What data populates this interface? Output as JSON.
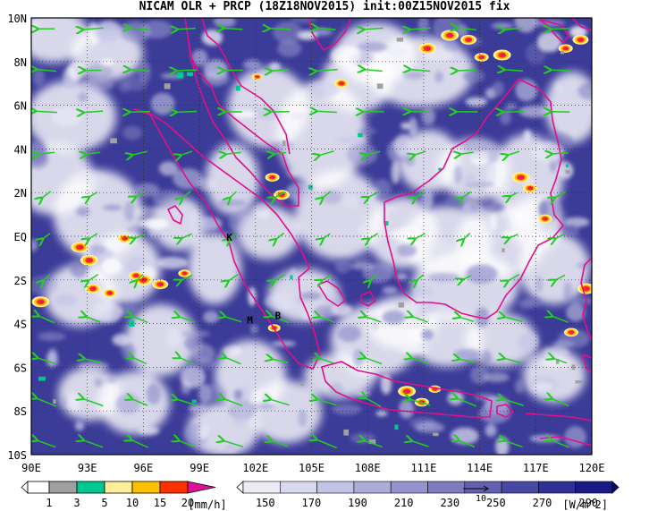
{
  "title": "NICAM OLR + PRCP (18Z18NOV2015) init:00Z15NOV2015 fix",
  "lat_labels": [
    "10N",
    "8N",
    "6N",
    "4N",
    "2N",
    "EQ",
    "2S",
    "4S",
    "6S",
    "8S",
    "10S"
  ],
  "lon_labels": [
    "90E",
    "93E",
    "96E",
    "99E",
    "102E",
    "105E",
    "108E",
    "111E",
    "114E",
    "117E",
    "120E"
  ],
  "map_extent": {
    "lon": [
      90,
      120
    ],
    "lat": [
      -10,
      10
    ]
  },
  "station_markers": [
    {
      "label": "K",
      "lon": 100.6,
      "lat": -0.2
    },
    {
      "label": "M",
      "lon": 101.7,
      "lat": -4.0
    },
    {
      "label": "B",
      "lon": 103.2,
      "lat": -3.8
    }
  ],
  "precip_colorbar": {
    "ticks": [
      "1",
      "3",
      "5",
      "10",
      "15",
      "20"
    ],
    "unit": "[mm/h]",
    "colors": [
      "#a0a0a0",
      "#00c890",
      "#ffee99",
      "#ffc000",
      "#ff3000",
      "#e0109a"
    ]
  },
  "olr_colorbar": {
    "ticks": [
      "150",
      "170",
      "190",
      "210",
      "230",
      "250",
      "270",
      "290"
    ],
    "unit": "[W/m^2]",
    "colors": [
      "#ffffff",
      "#ececf7",
      "#d8d8ef",
      "#c2c2e5",
      "#acacd9",
      "#9494cd",
      "#7c7cbf",
      "#6262b1",
      "#4848a3",
      "#303095",
      "#1a1a86",
      "#0a0a72"
    ]
  },
  "wind_reference_label": "10",
  "colors": {
    "coastline": "#e0108a",
    "wind_arrow": "#22cc22",
    "deep_blue": "#2a2a8c",
    "cloud_white": "#ffffff"
  }
}
